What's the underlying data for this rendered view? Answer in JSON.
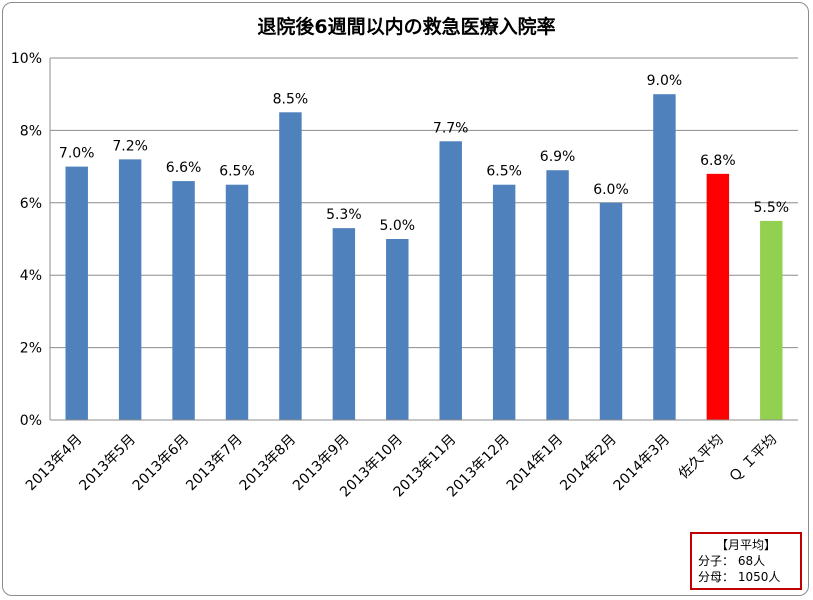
{
  "chart_data": {
    "type": "bar",
    "title": "退院後6週間以内の救急医療入院率",
    "categories": [
      "2013年4月",
      "2013年5月",
      "2013年6月",
      "2013年7月",
      "2013年8月",
      "2013年9月",
      "2013年10月",
      "2013年11月",
      "2013年12月",
      "2014年1月",
      "2014年2月",
      "2014年3月",
      "佐久平均",
      "Ｑ Ｉ平均"
    ],
    "values": [
      7.0,
      7.2,
      6.6,
      6.5,
      8.5,
      5.3,
      5.0,
      7.7,
      6.5,
      6.9,
      6.0,
      9.0,
      6.8,
      5.5
    ],
    "value_labels": [
      "7.0%",
      "7.2%",
      "6.6%",
      "6.5%",
      "8.5%",
      "5.3%",
      "5.0%",
      "7.7%",
      "6.5%",
      "6.9%",
      "6.0%",
      "9.0%",
      "6.8%",
      "5.5%"
    ],
    "bar_colors": [
      "#4f81bd",
      "#4f81bd",
      "#4f81bd",
      "#4f81bd",
      "#4f81bd",
      "#4f81bd",
      "#4f81bd",
      "#4f81bd",
      "#4f81bd",
      "#4f81bd",
      "#4f81bd",
      "#4f81bd",
      "#ff0000",
      "#92d050"
    ],
    "yticks": [
      0,
      2,
      4,
      6,
      8,
      10
    ],
    "ytick_labels": [
      "0%",
      "2%",
      "4%",
      "6%",
      "8%",
      "10%"
    ],
    "ylim": [
      0,
      10
    ],
    "grid": true,
    "xlabel": "",
    "ylabel": ""
  },
  "note": {
    "title": "【月平均】",
    "line1": "分子：  68人",
    "line2": "分母：  1050人"
  },
  "colors": {
    "default_bar": "#4f81bd",
    "gridline": "#8c8c8c",
    "note_border": "#c00000"
  }
}
